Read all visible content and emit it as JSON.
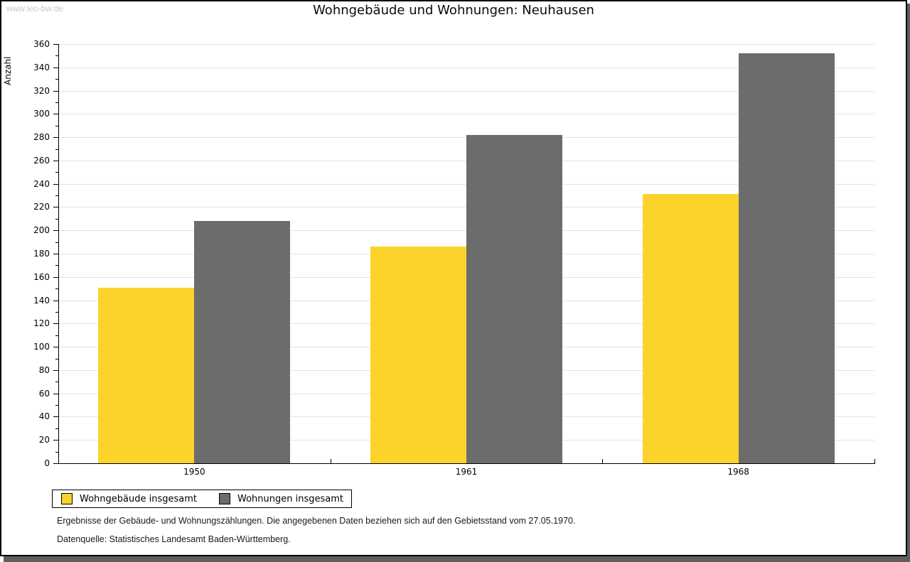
{
  "watermark": "www.leo-bw.de",
  "title": "Wohngebäude und Wohnungen: Neuhausen",
  "chart_data": {
    "type": "bar",
    "categories": [
      "1950",
      "1961",
      "1968"
    ],
    "series": [
      {
        "name": "Wohngebäude insgesamt",
        "color": "#FCD32B",
        "values": [
          151,
          186,
          231
        ]
      },
      {
        "name": "Wohnungen insgesamt",
        "color": "#6C6C6C",
        "values": [
          208,
          282,
          352
        ]
      }
    ],
    "title": "Wohngebäude und Wohnungen: Neuhausen",
    "xlabel": "",
    "ylabel": "Anzahl",
    "ylim": [
      0,
      360
    ],
    "ytick_step": 20,
    "minor_tick_step": 10,
    "grid": true,
    "legend_position": "bottom-left"
  },
  "footnotes": {
    "line1": "Ergebnisse der Gebäude- und Wohnungszählungen. Die angegebenen Daten beziehen sich auf den Gebietsstand vom 27.05.1970.",
    "line2": "Datenquelle: Statistisches Landesamt Baden-Württemberg."
  }
}
